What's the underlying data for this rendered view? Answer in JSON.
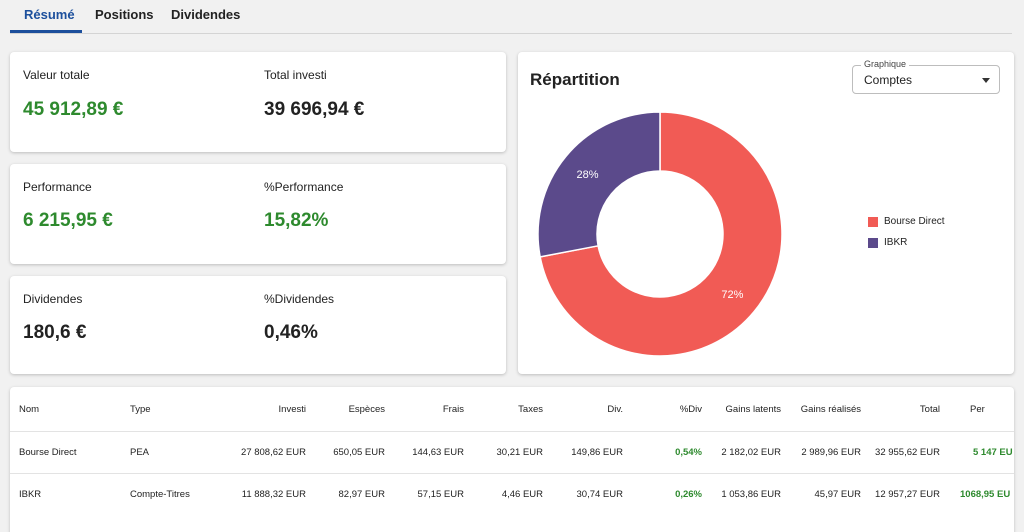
{
  "tabs": [
    {
      "label": "Résumé",
      "active": true
    },
    {
      "label": "Positions",
      "active": false
    },
    {
      "label": "Dividendes",
      "active": false
    }
  ],
  "stats": {
    "valeur_totale": {
      "label": "Valeur totale",
      "value": "45 912,89 €"
    },
    "total_investi": {
      "label": "Total investi",
      "value": "39 696,94 €"
    },
    "performance": {
      "label": "Performance",
      "value": "6 215,95 €"
    },
    "pct_performance": {
      "label": "%Performance",
      "value": "15,82%"
    },
    "dividendes": {
      "label": "Dividendes",
      "value": "180,6 €"
    },
    "pct_dividendes": {
      "label": "%Dividendes",
      "value": "0,46%"
    }
  },
  "chart_panel": {
    "title": "Répartition",
    "select_legend": "Graphique",
    "select_value": "Comptes"
  },
  "chart_data": {
    "type": "pie",
    "title": "Répartition",
    "categories": [
      "Bourse Direct",
      "IBKR"
    ],
    "values": [
      72,
      28
    ],
    "labels": [
      "72%",
      "28%"
    ],
    "colors": [
      "#f15b55",
      "#5b4a8b"
    ],
    "donut": true,
    "legend_position": "right"
  },
  "table": {
    "headers": [
      "Nom",
      "Type",
      "Investi",
      "Espèces",
      "Frais",
      "Taxes",
      "Div.",
      "%Div",
      "Gains latents",
      "Gains réalisés",
      "Total",
      "Per"
    ],
    "rows": [
      [
        "Bourse Direct",
        "PEA",
        "27 808,62 EUR",
        "650,05 EUR",
        "144,63 EUR",
        "30,21 EUR",
        "149,86 EUR",
        "0,54%",
        "2 182,02 EUR",
        "2 989,96 EUR",
        "32 955,62 EUR",
        "5 147 EU"
      ],
      [
        "IBKR",
        "Compte-Titres",
        "11 888,32 EUR",
        "82,97 EUR",
        "57,15 EUR",
        "4,46 EUR",
        "30,74 EUR",
        "0,26%",
        "1 053,86 EUR",
        "45,97 EUR",
        "12 957,27 EUR",
        "1068,95 EU"
      ]
    ]
  },
  "colors": {
    "accent": "#1c4f9c",
    "positive": "#2e8a2e"
  }
}
